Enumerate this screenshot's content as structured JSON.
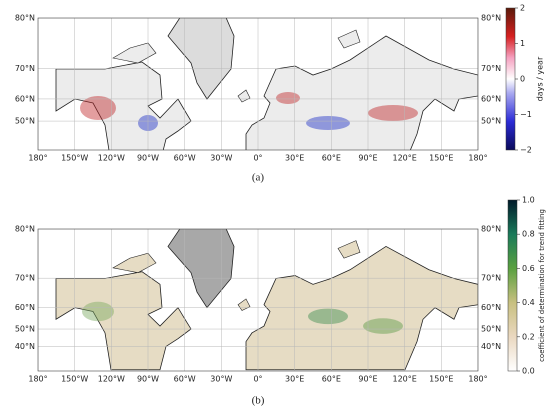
{
  "panels": [
    {
      "caption": "(a)",
      "lat_labels": [
        {
          "value": 80,
          "label": "80°N"
        },
        {
          "value": 70,
          "label": "70°N"
        },
        {
          "value": 60,
          "label": "60°N"
        },
        {
          "value": 50,
          "label": "50°N"
        }
      ],
      "lon_labels": [
        {
          "value": -180,
          "label": "180°"
        },
        {
          "value": -150,
          "label": "150°W"
        },
        {
          "value": -120,
          "label": "120°W"
        },
        {
          "value": -90,
          "label": "90°W"
        },
        {
          "value": -60,
          "label": "60°W"
        },
        {
          "value": -30,
          "label": "30°W"
        },
        {
          "value": 0,
          "label": "0°"
        },
        {
          "value": 30,
          "label": "30°E"
        },
        {
          "value": 60,
          "label": "60°E"
        },
        {
          "value": 90,
          "label": "90°E"
        },
        {
          "value": 120,
          "label": "120°E"
        },
        {
          "value": 150,
          "label": "150°E"
        },
        {
          "value": 180,
          "label": "180°"
        }
      ],
      "latlim": [
        33,
        80
      ],
      "lonlim": [
        -180,
        180
      ],
      "colorbar": {
        "label": "days / year",
        "lim": [
          -2,
          2
        ],
        "ticks": [
          2,
          1,
          0,
          {
            "value": -1,
            "label": "−1"
          },
          {
            "value": -2,
            "label": "−2"
          }
        ]
      }
    },
    {
      "caption": "(b)",
      "lat_labels": [
        {
          "value": 80,
          "label": "80°N"
        },
        {
          "value": 70,
          "label": "70°N"
        },
        {
          "value": 60,
          "label": "60°N"
        },
        {
          "value": 50,
          "label": "50°N"
        },
        {
          "value": 40,
          "label": "40°N"
        }
      ],
      "lon_labels": [
        {
          "value": -180,
          "label": "180°"
        },
        {
          "value": -150,
          "label": "150°W"
        },
        {
          "value": -120,
          "label": "120°W"
        },
        {
          "value": -90,
          "label": "90°W"
        },
        {
          "value": -60,
          "label": "60°W"
        },
        {
          "value": -30,
          "label": "30°W"
        },
        {
          "value": 0,
          "label": "0°"
        },
        {
          "value": 30,
          "label": "30°E"
        },
        {
          "value": 60,
          "label": "60°E"
        },
        {
          "value": 90,
          "label": "90°E"
        },
        {
          "value": 120,
          "label": "120°E"
        },
        {
          "value": 150,
          "label": "150°E"
        },
        {
          "value": 180,
          "label": "180°"
        }
      ],
      "latlim": [
        23,
        80
      ],
      "lonlim": [
        -180,
        180
      ],
      "colorbar": {
        "label": "coefficient of determination for trend fitting",
        "lim": [
          0,
          1
        ],
        "ticks": [
          {
            "value": 0,
            "label": "0.0"
          },
          {
            "value": 0.2,
            "label": "0.2"
          },
          {
            "value": 0.4,
            "label": "0.4"
          },
          {
            "value": 0.6,
            "label": "0.6"
          },
          {
            "value": 0.8,
            "label": "0.8"
          },
          {
            "value": 1,
            "label": "1.0"
          }
        ]
      }
    }
  ]
}
